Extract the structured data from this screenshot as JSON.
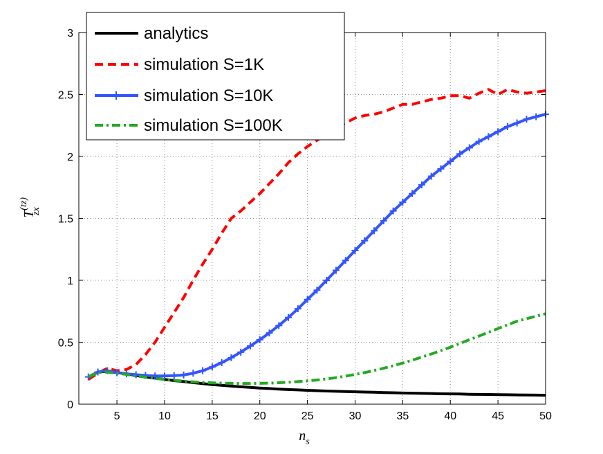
{
  "chart_data": {
    "type": "line",
    "xlabel": {
      "main": "n",
      "sub": "s"
    },
    "ylabel": {
      "main": "T",
      "sup": "(tz)",
      "sub": "zx"
    },
    "xlim": [
      1,
      50
    ],
    "ylim": [
      0,
      3
    ],
    "xticks": [
      5,
      10,
      15,
      20,
      25,
      30,
      35,
      40,
      45,
      50
    ],
    "yticks": [
      0,
      0.5,
      1,
      1.5,
      2,
      2.5,
      3
    ],
    "ytick_labels": [
      "0",
      "0.5",
      "1",
      "1.5",
      "2",
      "2.5",
      "3"
    ],
    "grid": true,
    "legend_position": "top-left",
    "x": [
      2,
      3,
      4,
      5,
      6,
      7,
      8,
      9,
      10,
      11,
      12,
      13,
      14,
      15,
      16,
      17,
      18,
      19,
      20,
      21,
      22,
      23,
      24,
      25,
      26,
      27,
      28,
      29,
      30,
      31,
      32,
      33,
      34,
      35,
      36,
      37,
      38,
      39,
      40,
      41,
      42,
      43,
      44,
      45,
      46,
      47,
      48,
      49,
      50
    ],
    "series": [
      {
        "name": "analytics",
        "color": "#000000",
        "style": "solid",
        "marker": "none",
        "values": [
          0.22,
          0.26,
          0.265,
          0.255,
          0.245,
          0.232,
          0.22,
          0.21,
          0.2,
          0.19,
          0.182,
          0.174,
          0.166,
          0.158,
          0.152,
          0.146,
          0.14,
          0.135,
          0.13,
          0.126,
          0.122,
          0.118,
          0.115,
          0.112,
          0.109,
          0.106,
          0.104,
          0.102,
          0.1,
          0.098,
          0.096,
          0.094,
          0.092,
          0.09,
          0.089,
          0.087,
          0.086,
          0.084,
          0.083,
          0.082,
          0.08,
          0.079,
          0.078,
          0.077,
          0.076,
          0.075,
          0.074,
          0.073,
          0.072
        ]
      },
      {
        "name": "simulation S=1K",
        "color": "#ff0000",
        "style": "dashed",
        "marker": "none",
        "values": [
          0.2,
          0.25,
          0.29,
          0.27,
          0.28,
          0.32,
          0.4,
          0.5,
          0.62,
          0.74,
          0.86,
          1.0,
          1.13,
          1.25,
          1.38,
          1.5,
          1.56,
          1.63,
          1.7,
          1.78,
          1.86,
          1.95,
          2.02,
          2.08,
          2.13,
          2.18,
          2.24,
          2.27,
          2.31,
          2.33,
          2.34,
          2.36,
          2.39,
          2.42,
          2.42,
          2.44,
          2.46,
          2.47,
          2.49,
          2.49,
          2.47,
          2.51,
          2.54,
          2.5,
          2.54,
          2.52,
          2.51,
          2.52,
          2.53
        ]
      },
      {
        "name": "simulation S=10K",
        "color": "#3355ff",
        "style": "solid",
        "marker": "plus",
        "values": [
          0.22,
          0.26,
          0.27,
          0.255,
          0.245,
          0.238,
          0.232,
          0.228,
          0.228,
          0.23,
          0.235,
          0.25,
          0.27,
          0.3,
          0.335,
          0.375,
          0.42,
          0.47,
          0.52,
          0.575,
          0.635,
          0.7,
          0.77,
          0.845,
          0.92,
          1.0,
          1.08,
          1.16,
          1.24,
          1.32,
          1.4,
          1.48,
          1.56,
          1.63,
          1.7,
          1.77,
          1.84,
          1.9,
          1.96,
          2.02,
          2.07,
          2.12,
          2.16,
          2.2,
          2.24,
          2.27,
          2.3,
          2.32,
          2.34
        ]
      },
      {
        "name": "simulation S=100K",
        "color": "#22aa22",
        "style": "dashdot",
        "marker": "none",
        "values": [
          0.22,
          0.255,
          0.26,
          0.25,
          0.24,
          0.228,
          0.218,
          0.208,
          0.2,
          0.193,
          0.186,
          0.18,
          0.176,
          0.172,
          0.17,
          0.168,
          0.167,
          0.167,
          0.168,
          0.17,
          0.173,
          0.177,
          0.182,
          0.188,
          0.195,
          0.204,
          0.214,
          0.226,
          0.24,
          0.255,
          0.272,
          0.29,
          0.31,
          0.332,
          0.355,
          0.38,
          0.405,
          0.432,
          0.46,
          0.49,
          0.52,
          0.55,
          0.58,
          0.61,
          0.64,
          0.67,
          0.69,
          0.71,
          0.73
        ]
      }
    ]
  }
}
